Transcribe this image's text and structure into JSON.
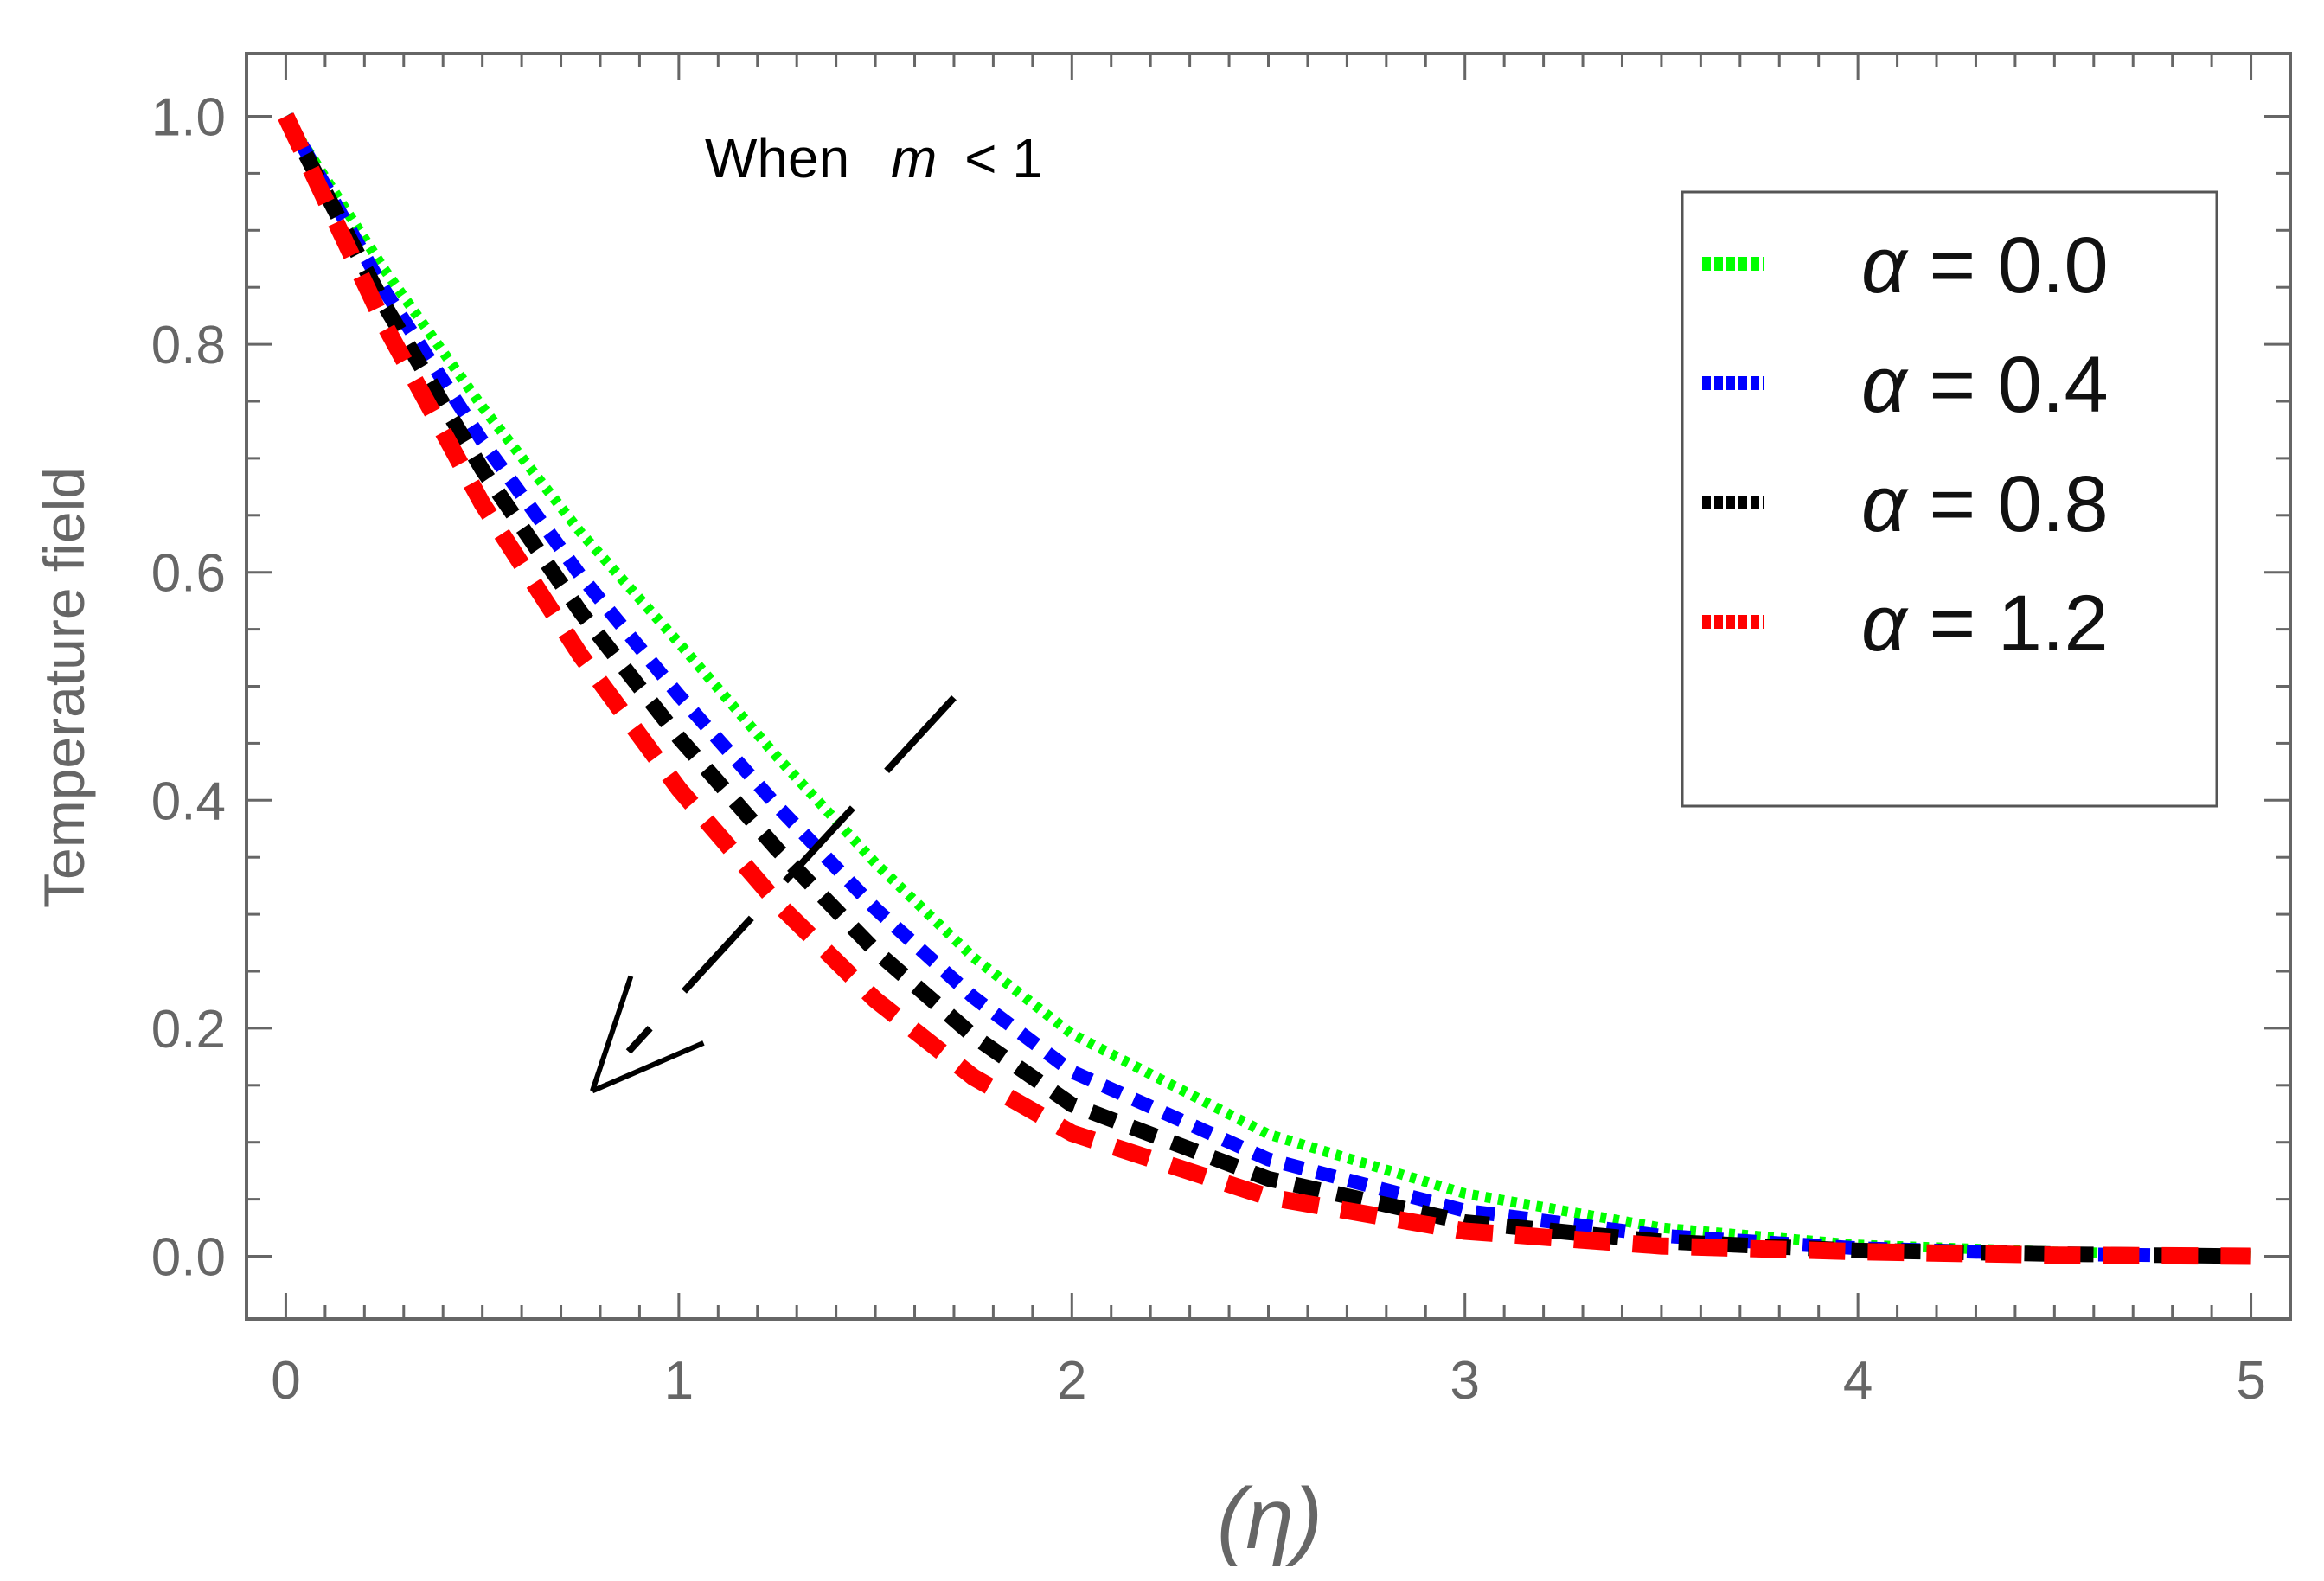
{
  "chart_data": {
    "type": "line",
    "title": "",
    "annotation": {
      "prefix": "When",
      "symbol": "m",
      "relation": "< 1"
    },
    "xlabel": "(η)",
    "ylabel": "Temperature field",
    "xlim": [
      -0.1,
      5.1
    ],
    "ylim": [
      -0.055,
      1.055
    ],
    "xticks": [
      0,
      1,
      2,
      3,
      4,
      5
    ],
    "xtick_labels": [
      "0",
      "1",
      "2",
      "3",
      "4",
      "5"
    ],
    "yticks": [
      0.0,
      0.2,
      0.4,
      0.6,
      0.8,
      1.0
    ],
    "ytick_labels": [
      "0.0",
      "0.2",
      "0.4",
      "0.6",
      "0.8",
      "1.0"
    ],
    "legend_position": "top-right",
    "x": [
      0,
      0.25,
      0.5,
      0.75,
      1.0,
      1.25,
      1.5,
      1.75,
      2.0,
      2.5,
      3.0,
      3.5,
      4.0,
      4.5,
      5.0
    ],
    "series": [
      {
        "name": "α = 0.0",
        "symbol": "α",
        "value_label": "= 0.0",
        "color": "#00ff00",
        "values": [
          1.0,
          0.866,
          0.745,
          0.635,
          0.538,
          0.438,
          0.345,
          0.262,
          0.195,
          0.107,
          0.055,
          0.025,
          0.01,
          0.004,
          0.0
        ]
      },
      {
        "name": "α = 0.4",
        "symbol": "α",
        "value_label": "= 0.4",
        "color": "#0000ff",
        "values": [
          1.0,
          0.848,
          0.715,
          0.597,
          0.492,
          0.395,
          0.305,
          0.227,
          0.162,
          0.085,
          0.04,
          0.018,
          0.007,
          0.002,
          0.0
        ]
      },
      {
        "name": "α = 0.8",
        "symbol": "α",
        "value_label": "= 0.8",
        "color": "#000000",
        "values": [
          1.0,
          0.835,
          0.69,
          0.565,
          0.455,
          0.357,
          0.268,
          0.193,
          0.133,
          0.068,
          0.03,
          0.013,
          0.005,
          0.002,
          0.0
        ]
      },
      {
        "name": "α = 1.2",
        "symbol": "α",
        "value_label": "= 1.2",
        "color": "#ff0000",
        "values": [
          1.0,
          0.818,
          0.66,
          0.527,
          0.41,
          0.31,
          0.225,
          0.157,
          0.108,
          0.052,
          0.022,
          0.009,
          0.004,
          0.001,
          0.0
        ]
      }
    ],
    "arrow": {
      "from": [
        1.7,
        0.49
      ],
      "to": [
        0.78,
        0.145
      ]
    }
  }
}
